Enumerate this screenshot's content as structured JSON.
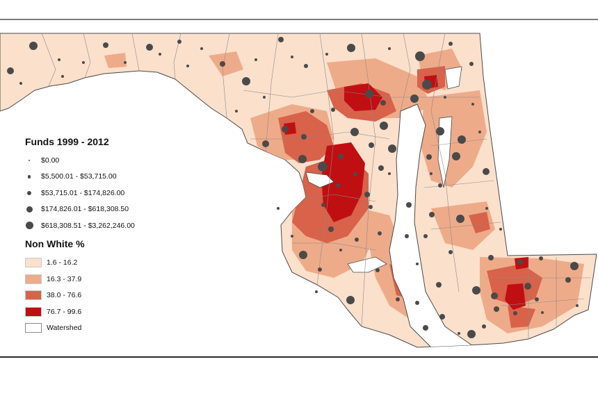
{
  "legend": {
    "funds_title": "Funds 1999 - 2012",
    "funds": [
      {
        "label": "$0.00",
        "size": 1
      },
      {
        "label": "$5,500.01 - $53,715.00",
        "size": 2
      },
      {
        "label": "$53,715.01 - $174,826.00",
        "size": 3
      },
      {
        "label": "$174,826.01 - $618,308.50",
        "size": 4
      },
      {
        "label": "$618,308.51 - $3,262,246.00",
        "size": 5
      }
    ],
    "nonwhite_title": "Non White %",
    "nonwhite": [
      {
        "label": "1.6 - 16.2",
        "color": "#fbe0cc"
      },
      {
        "label": "16.3 - 37.9",
        "color": "#eeab8a"
      },
      {
        "label": "38.0 - 76.6",
        "color": "#d8624a"
      },
      {
        "label": "76.7 - 99.6",
        "color": "#c00f12"
      },
      {
        "label": "Watershed",
        "color": "#ffffff"
      }
    ]
  },
  "colors": {
    "outline": "#4a4a4a",
    "dot": "#4a4a4a",
    "water": "#ffffff",
    "class1": "#fbe0cc",
    "class2": "#eeab8a",
    "class3": "#d8624a",
    "class4": "#c00f12"
  }
}
